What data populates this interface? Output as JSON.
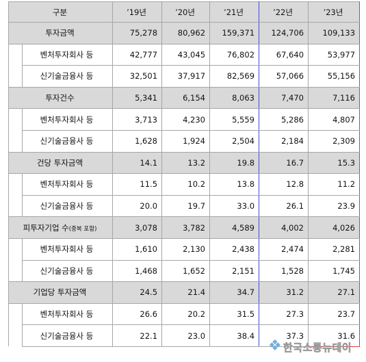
{
  "header": {
    "category": "구분",
    "years": [
      "’19년",
      "’20년",
      "’21년",
      "’22년",
      "’23년"
    ]
  },
  "groups": [
    {
      "label": "투자금액",
      "values": [
        "75,278",
        "80,962",
        "159,371",
        "124,706",
        "109,133"
      ],
      "rows": [
        {
          "label": "벤처투자회사 등",
          "values": [
            "42,777",
            "43,045",
            "76,802",
            "67,640",
            "53,977"
          ]
        },
        {
          "label": "신기술금융사 등",
          "values": [
            "32,501",
            "37,917",
            "82,569",
            "57,066",
            "55,156"
          ]
        }
      ]
    },
    {
      "label": "투자건수",
      "values": [
        "5,341",
        "6,154",
        "8,063",
        "7,470",
        "7,116"
      ],
      "rows": [
        {
          "label": "벤처투자회사 등",
          "values": [
            "3,713",
            "4,230",
            "5,559",
            "5,286",
            "4,807"
          ]
        },
        {
          "label": "신기술금융사 등",
          "values": [
            "1,628",
            "1,924",
            "2,504",
            "2,184",
            "2,309"
          ]
        }
      ]
    },
    {
      "label": "건당 투자금액",
      "values": [
        "14.1",
        "13.2",
        "19.8",
        "16.7",
        "15.3"
      ],
      "rows": [
        {
          "label": "벤처투자회사 등",
          "values": [
            "11.5",
            "10.2",
            "13.8",
            "12.8",
            "11.2"
          ]
        },
        {
          "label": "신기술금융사 등",
          "values": [
            "20.0",
            "19.7",
            "33.0",
            "26.1",
            "23.9"
          ]
        }
      ]
    },
    {
      "label": "피투자기업 수",
      "label_note": "(중복 포함)",
      "values": [
        "3,078",
        "3,782",
        "4,589",
        "4,002",
        "4,026"
      ],
      "rows": [
        {
          "label": "벤처투자회사 등",
          "values": [
            "1,610",
            "2,130",
            "2,438",
            "2,474",
            "2,281"
          ]
        },
        {
          "label": "신기술금융사 등",
          "values": [
            "1,468",
            "1,652",
            "2,151",
            "1,528",
            "1,745"
          ]
        }
      ]
    },
    {
      "label": "기업당 투자금액",
      "values": [
        "24.5",
        "21.4",
        "34.7",
        "31.2",
        "27.1"
      ],
      "rows": [
        {
          "label": "벤처투자회사 등",
          "values": [
            "26.6",
            "20.2",
            "31.5",
            "27.3",
            "23.7"
          ]
        },
        {
          "label": "신기술금융사 등",
          "values": [
            "22.1",
            "23.0",
            "38.4",
            "37.3",
            "31.6"
          ]
        }
      ]
    }
  ],
  "watermark": {
    "text": "한국소통뉴데이",
    "icon": "watermark-logo-icon"
  },
  "colors": {
    "header_bg": "#d9d9d9",
    "grid": "#a6a6a6",
    "highlight_blue": "#3d4fd6",
    "highlight_red": "#e0383a",
    "watermark": "#5aa2d8"
  }
}
